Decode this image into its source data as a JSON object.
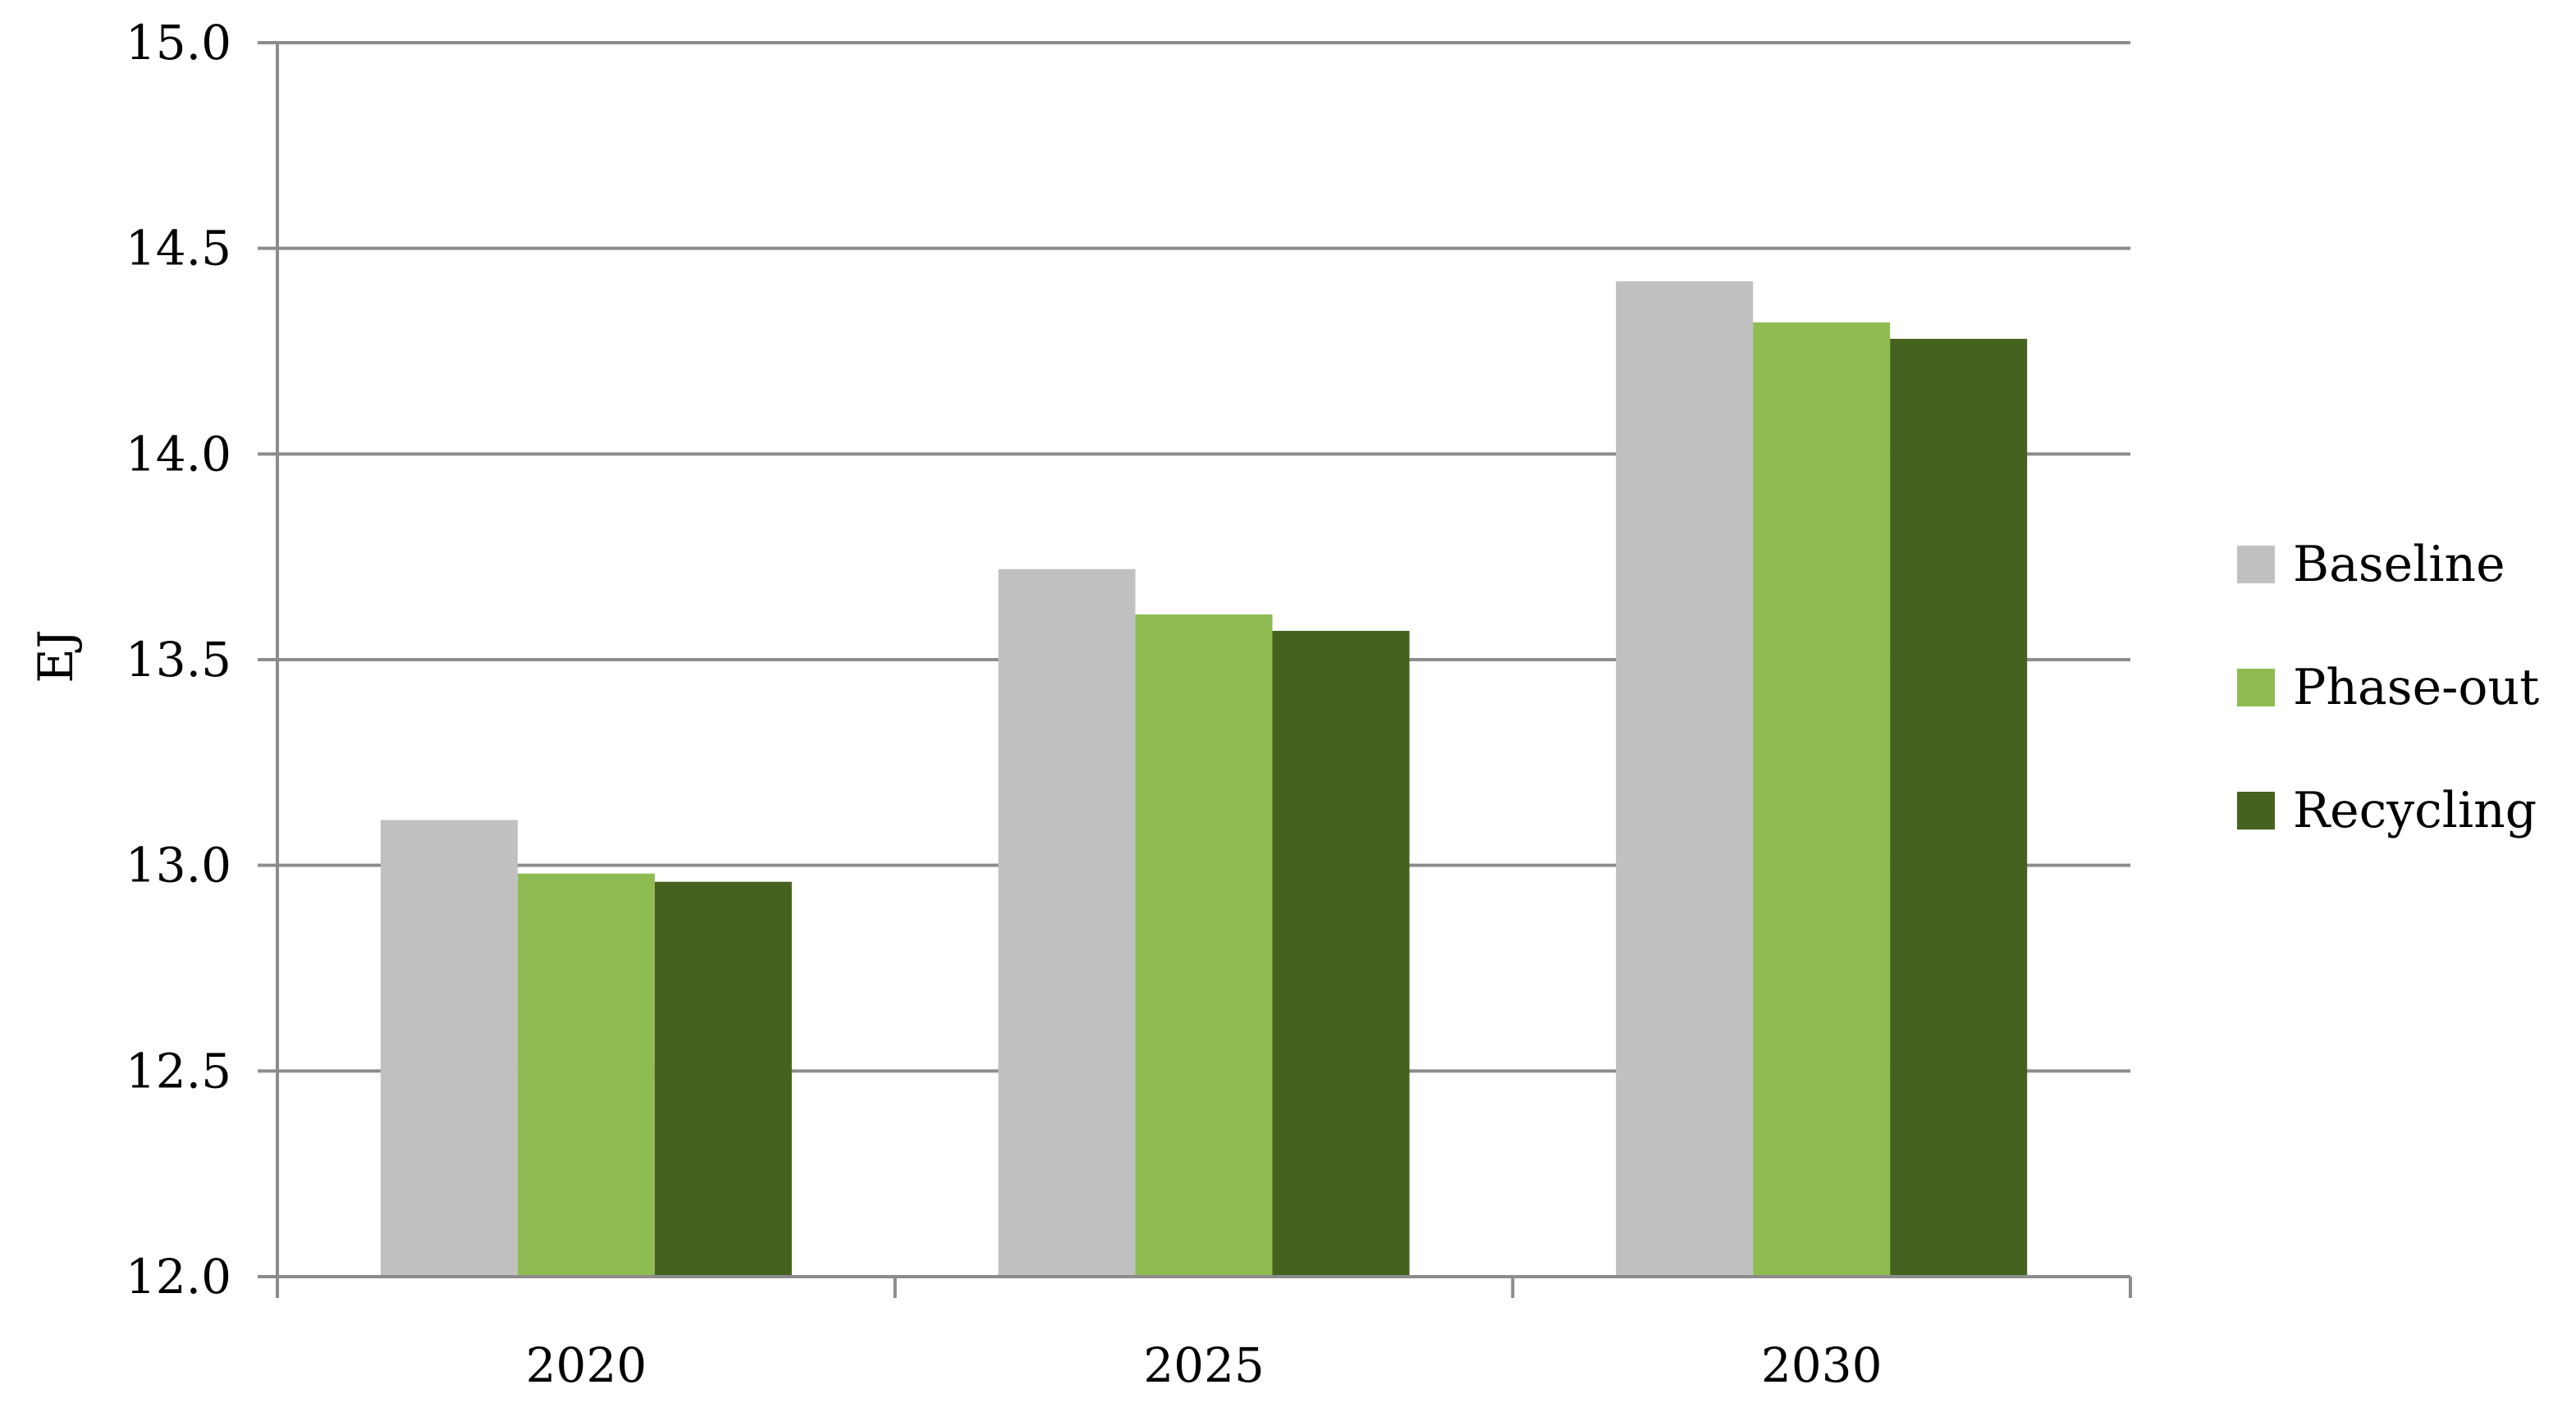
{
  "chart_data": {
    "type": "bar",
    "title": "",
    "xlabel": "",
    "ylabel": "EJ",
    "ylim": [
      12.0,
      15.0
    ],
    "yticks": [
      "12.0",
      "12.5",
      "13.0",
      "13.5",
      "14.0",
      "14.5",
      "15.0"
    ],
    "grid": true,
    "legend_position": "right",
    "categories": [
      "2020",
      "2025",
      "2030"
    ],
    "series": [
      {
        "name": "Baseline",
        "color": "#c0c0c0",
        "values": [
          13.11,
          13.72,
          14.42
        ]
      },
      {
        "name": "Phase-out",
        "color": "#8fbc52",
        "values": [
          12.98,
          13.61,
          14.32
        ]
      },
      {
        "name": "Recycling",
        "color": "#46621f",
        "values": [
          12.96,
          13.57,
          14.28
        ]
      }
    ]
  }
}
